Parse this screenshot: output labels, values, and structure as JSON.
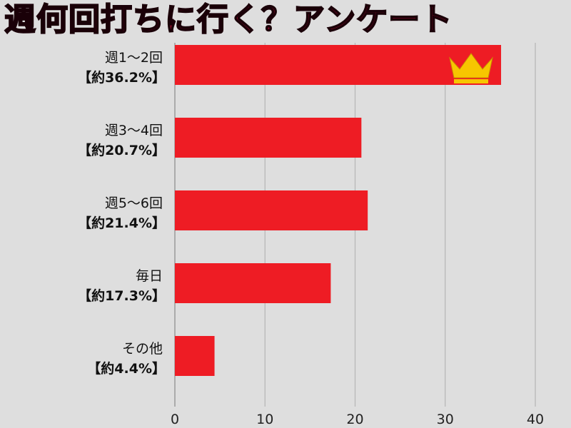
{
  "title": "週何回打ちに行く？アンケート",
  "colors": {
    "background": "#dedede",
    "bar": "#ee1c24",
    "title": "#8c0f2a",
    "grid": "#b5b5b5",
    "crown": "#f7c600"
  },
  "chart_data": {
    "type": "bar",
    "orientation": "horizontal",
    "categories": [
      "週1〜2回",
      "週3〜4回",
      "週5〜6回",
      "毎日",
      "その他"
    ],
    "category_percent_labels": [
      "【約36.2%】",
      "【約20.7%】",
      "【約21.4%】",
      "【約17.3%】",
      "【約4.4%】"
    ],
    "values": [
      36.2,
      20.7,
      21.4,
      17.3,
      4.4
    ],
    "xlim": [
      0,
      40
    ],
    "xticks": [
      "0",
      "10",
      "20",
      "30",
      "40"
    ],
    "tick_values": [
      0,
      10,
      20,
      30,
      40
    ],
    "grid": true,
    "top_marker": "crown-icon"
  }
}
